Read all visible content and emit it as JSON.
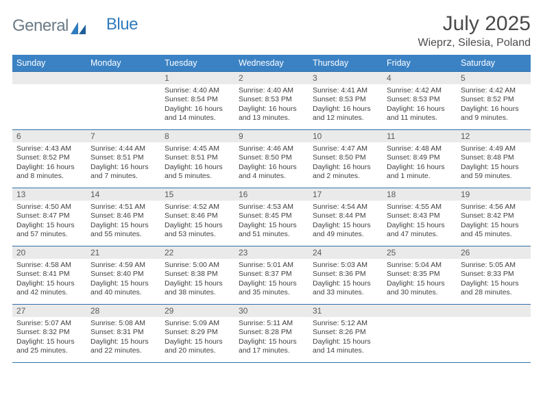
{
  "brand": {
    "part1": "General",
    "part2": "Blue"
  },
  "title": "July 2025",
  "location": "Wieprz, Silesia, Poland",
  "colors": {
    "header_bg": "#3b82c4",
    "rule": "#2f6ea8",
    "daynum_bg": "#eaeaea",
    "text": "#404040",
    "logo_gray": "#6b7a86",
    "logo_blue": "#2f7bbf"
  },
  "dow": [
    "Sunday",
    "Monday",
    "Tuesday",
    "Wednesday",
    "Thursday",
    "Friday",
    "Saturday"
  ],
  "weeks": [
    [
      {
        "n": "",
        "blank": true
      },
      {
        "n": "",
        "blank": true
      },
      {
        "n": "1",
        "sr": "Sunrise: 4:40 AM",
        "ss": "Sunset: 8:54 PM",
        "d1": "Daylight: 16 hours",
        "d2": "and 14 minutes."
      },
      {
        "n": "2",
        "sr": "Sunrise: 4:40 AM",
        "ss": "Sunset: 8:53 PM",
        "d1": "Daylight: 16 hours",
        "d2": "and 13 minutes."
      },
      {
        "n": "3",
        "sr": "Sunrise: 4:41 AM",
        "ss": "Sunset: 8:53 PM",
        "d1": "Daylight: 16 hours",
        "d2": "and 12 minutes."
      },
      {
        "n": "4",
        "sr": "Sunrise: 4:42 AM",
        "ss": "Sunset: 8:53 PM",
        "d1": "Daylight: 16 hours",
        "d2": "and 11 minutes."
      },
      {
        "n": "5",
        "sr": "Sunrise: 4:42 AM",
        "ss": "Sunset: 8:52 PM",
        "d1": "Daylight: 16 hours",
        "d2": "and 9 minutes."
      }
    ],
    [
      {
        "n": "6",
        "sr": "Sunrise: 4:43 AM",
        "ss": "Sunset: 8:52 PM",
        "d1": "Daylight: 16 hours",
        "d2": "and 8 minutes."
      },
      {
        "n": "7",
        "sr": "Sunrise: 4:44 AM",
        "ss": "Sunset: 8:51 PM",
        "d1": "Daylight: 16 hours",
        "d2": "and 7 minutes."
      },
      {
        "n": "8",
        "sr": "Sunrise: 4:45 AM",
        "ss": "Sunset: 8:51 PM",
        "d1": "Daylight: 16 hours",
        "d2": "and 5 minutes."
      },
      {
        "n": "9",
        "sr": "Sunrise: 4:46 AM",
        "ss": "Sunset: 8:50 PM",
        "d1": "Daylight: 16 hours",
        "d2": "and 4 minutes."
      },
      {
        "n": "10",
        "sr": "Sunrise: 4:47 AM",
        "ss": "Sunset: 8:50 PM",
        "d1": "Daylight: 16 hours",
        "d2": "and 2 minutes."
      },
      {
        "n": "11",
        "sr": "Sunrise: 4:48 AM",
        "ss": "Sunset: 8:49 PM",
        "d1": "Daylight: 16 hours",
        "d2": "and 1 minute."
      },
      {
        "n": "12",
        "sr": "Sunrise: 4:49 AM",
        "ss": "Sunset: 8:48 PM",
        "d1": "Daylight: 15 hours",
        "d2": "and 59 minutes."
      }
    ],
    [
      {
        "n": "13",
        "sr": "Sunrise: 4:50 AM",
        "ss": "Sunset: 8:47 PM",
        "d1": "Daylight: 15 hours",
        "d2": "and 57 minutes."
      },
      {
        "n": "14",
        "sr": "Sunrise: 4:51 AM",
        "ss": "Sunset: 8:46 PM",
        "d1": "Daylight: 15 hours",
        "d2": "and 55 minutes."
      },
      {
        "n": "15",
        "sr": "Sunrise: 4:52 AM",
        "ss": "Sunset: 8:46 PM",
        "d1": "Daylight: 15 hours",
        "d2": "and 53 minutes."
      },
      {
        "n": "16",
        "sr": "Sunrise: 4:53 AM",
        "ss": "Sunset: 8:45 PM",
        "d1": "Daylight: 15 hours",
        "d2": "and 51 minutes."
      },
      {
        "n": "17",
        "sr": "Sunrise: 4:54 AM",
        "ss": "Sunset: 8:44 PM",
        "d1": "Daylight: 15 hours",
        "d2": "and 49 minutes."
      },
      {
        "n": "18",
        "sr": "Sunrise: 4:55 AM",
        "ss": "Sunset: 8:43 PM",
        "d1": "Daylight: 15 hours",
        "d2": "and 47 minutes."
      },
      {
        "n": "19",
        "sr": "Sunrise: 4:56 AM",
        "ss": "Sunset: 8:42 PM",
        "d1": "Daylight: 15 hours",
        "d2": "and 45 minutes."
      }
    ],
    [
      {
        "n": "20",
        "sr": "Sunrise: 4:58 AM",
        "ss": "Sunset: 8:41 PM",
        "d1": "Daylight: 15 hours",
        "d2": "and 42 minutes."
      },
      {
        "n": "21",
        "sr": "Sunrise: 4:59 AM",
        "ss": "Sunset: 8:40 PM",
        "d1": "Daylight: 15 hours",
        "d2": "and 40 minutes."
      },
      {
        "n": "22",
        "sr": "Sunrise: 5:00 AM",
        "ss": "Sunset: 8:38 PM",
        "d1": "Daylight: 15 hours",
        "d2": "and 38 minutes."
      },
      {
        "n": "23",
        "sr": "Sunrise: 5:01 AM",
        "ss": "Sunset: 8:37 PM",
        "d1": "Daylight: 15 hours",
        "d2": "and 35 minutes."
      },
      {
        "n": "24",
        "sr": "Sunrise: 5:03 AM",
        "ss": "Sunset: 8:36 PM",
        "d1": "Daylight: 15 hours",
        "d2": "and 33 minutes."
      },
      {
        "n": "25",
        "sr": "Sunrise: 5:04 AM",
        "ss": "Sunset: 8:35 PM",
        "d1": "Daylight: 15 hours",
        "d2": "and 30 minutes."
      },
      {
        "n": "26",
        "sr": "Sunrise: 5:05 AM",
        "ss": "Sunset: 8:33 PM",
        "d1": "Daylight: 15 hours",
        "d2": "and 28 minutes."
      }
    ],
    [
      {
        "n": "27",
        "sr": "Sunrise: 5:07 AM",
        "ss": "Sunset: 8:32 PM",
        "d1": "Daylight: 15 hours",
        "d2": "and 25 minutes."
      },
      {
        "n": "28",
        "sr": "Sunrise: 5:08 AM",
        "ss": "Sunset: 8:31 PM",
        "d1": "Daylight: 15 hours",
        "d2": "and 22 minutes."
      },
      {
        "n": "29",
        "sr": "Sunrise: 5:09 AM",
        "ss": "Sunset: 8:29 PM",
        "d1": "Daylight: 15 hours",
        "d2": "and 20 minutes."
      },
      {
        "n": "30",
        "sr": "Sunrise: 5:11 AM",
        "ss": "Sunset: 8:28 PM",
        "d1": "Daylight: 15 hours",
        "d2": "and 17 minutes."
      },
      {
        "n": "31",
        "sr": "Sunrise: 5:12 AM",
        "ss": "Sunset: 8:26 PM",
        "d1": "Daylight: 15 hours",
        "d2": "and 14 minutes."
      },
      {
        "n": "",
        "blank": true
      },
      {
        "n": "",
        "blank": true
      }
    ]
  ]
}
